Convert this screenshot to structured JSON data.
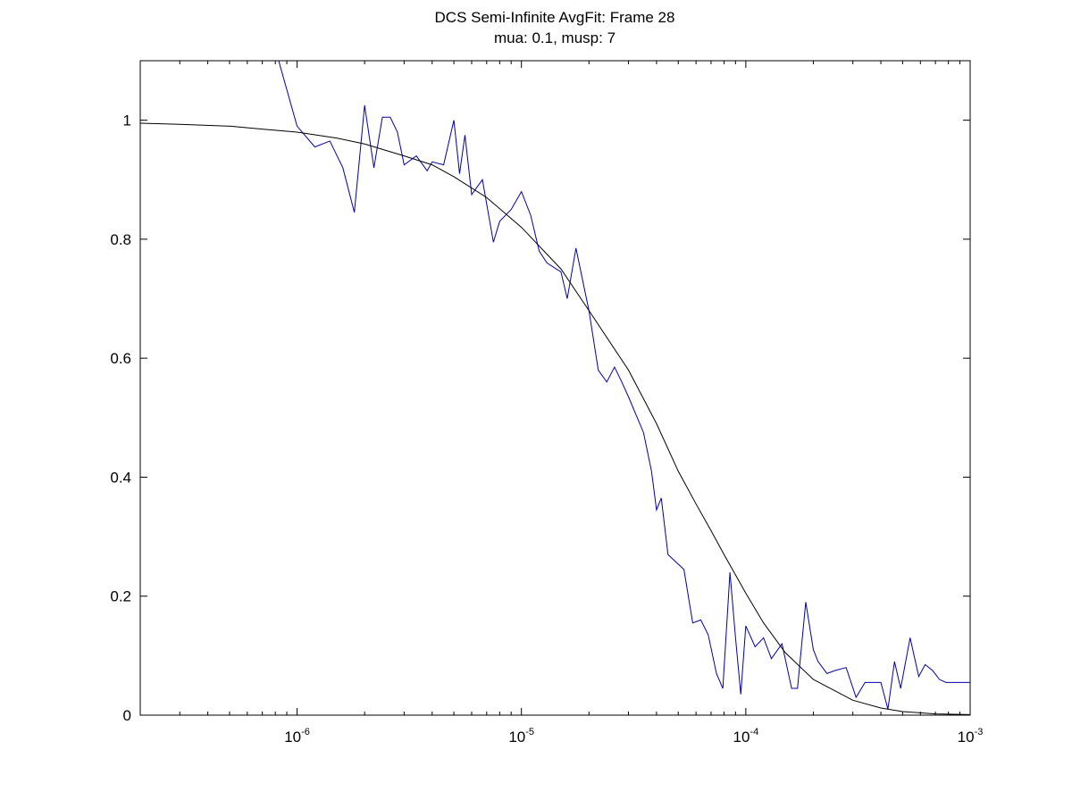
{
  "chart_data": {
    "type": "line",
    "title": "DCS Semi-Infinite AvgFit: Frame 28",
    "subtitle": "mua: 0.1, musp: 7",
    "xlabel": "",
    "ylabel": "",
    "xscale": "log",
    "xlim": [
      2e-07,
      0.001
    ],
    "ylim": [
      0,
      1.1
    ],
    "grid": false,
    "legend": "none",
    "x_ticks": [
      {
        "value": 1e-06,
        "base": "10",
        "exp": "-6"
      },
      {
        "value": 1e-05,
        "base": "10",
        "exp": "-5"
      },
      {
        "value": 0.0001,
        "base": "10",
        "exp": "-4"
      },
      {
        "value": 0.001,
        "base": "10",
        "exp": "-3"
      }
    ],
    "y_ticks": [
      {
        "value": 0,
        "label": "0"
      },
      {
        "value": 0.2,
        "label": "0.2"
      },
      {
        "value": 0.4,
        "label": "0.4"
      },
      {
        "value": 0.6,
        "label": "0.6"
      },
      {
        "value": 0.8,
        "label": "0.8"
      },
      {
        "value": 1,
        "label": "1"
      }
    ],
    "series": [
      {
        "color": "#0000aa",
        "x": [
          8e-07,
          1e-06,
          1.2e-06,
          1.4e-06,
          1.6e-06,
          1.8e-06,
          2e-06,
          2.2e-06,
          2.4e-06,
          2.6e-06,
          2.8e-06,
          3e-06,
          3.4e-06,
          3.8e-06,
          4e-06,
          4.5e-06,
          5e-06,
          5.3e-06,
          5.6e-06,
          6e-06,
          6.7e-06,
          7.5e-06,
          8e-06,
          9e-06,
          1e-05,
          1.1e-05,
          1.2e-05,
          1.3e-05,
          1.5e-05,
          1.6e-05,
          1.75e-05,
          1.9e-05,
          2e-05,
          2.2e-05,
          2.4e-05,
          2.6e-05,
          2.8e-05,
          3e-05,
          3.5e-05,
          3.8e-05,
          4e-05,
          4.2e-05,
          4.5e-05,
          4.8e-05,
          5.3e-05,
          5.8e-05,
          6.3e-05,
          6.8e-05,
          7.4e-05,
          7.9e-05,
          8.5e-05,
          9e-05,
          9.5e-05,
          0.0001,
          0.00011,
          0.00012,
          0.00013,
          0.000145,
          0.00016,
          0.00017,
          0.000185,
          0.0002,
          0.00021,
          0.00023,
          0.00025,
          0.00028,
          0.00031,
          0.00034,
          0.00036,
          0.00038,
          0.0004,
          0.00043,
          0.00046,
          0.00049,
          0.00054,
          0.00059,
          0.00063,
          0.00068,
          0.00073,
          0.00078,
          0.00083,
          0.0009,
          0.001
        ],
        "y": [
          1.12,
          0.99,
          0.955,
          0.965,
          0.92,
          0.845,
          1.025,
          0.92,
          1.005,
          1.005,
          0.98,
          0.925,
          0.94,
          0.915,
          0.93,
          0.925,
          1.0,
          0.91,
          0.975,
          0.875,
          0.9,
          0.795,
          0.83,
          0.85,
          0.88,
          0.84,
          0.78,
          0.76,
          0.745,
          0.7,
          0.785,
          0.72,
          0.68,
          0.58,
          0.56,
          0.585,
          0.56,
          0.535,
          0.475,
          0.41,
          0.345,
          0.365,
          0.27,
          0.26,
          0.245,
          0.155,
          0.16,
          0.135,
          0.07,
          0.045,
          0.24,
          0.13,
          0.035,
          0.15,
          0.115,
          0.13,
          0.095,
          0.12,
          0.045,
          0.045,
          0.19,
          0.11,
          0.09,
          0.07,
          0.075,
          0.08,
          0.03,
          0.055,
          0.055,
          0.055,
          0.055,
          0.01,
          0.09,
          0.045,
          0.13,
          0.065,
          0.085,
          0.075,
          0.06,
          0.055,
          0.055,
          0.055,
          0.055
        ]
      },
      {
        "color": "#000000",
        "x": [
          2e-07,
          3e-07,
          5e-07,
          7e-07,
          1e-06,
          1.5e-06,
          2e-06,
          3e-06,
          4e-06,
          5e-06,
          7e-06,
          1e-05,
          1.5e-05,
          2e-05,
          3e-05,
          4e-05,
          5e-05,
          6e-05,
          7e-05,
          8e-05,
          0.0001,
          0.00012,
          0.00015,
          0.0002,
          0.0003,
          0.0004,
          0.0005,
          0.0007,
          0.001
        ],
        "y": [
          0.995,
          0.993,
          0.99,
          0.985,
          0.98,
          0.97,
          0.96,
          0.94,
          0.925,
          0.905,
          0.87,
          0.82,
          0.75,
          0.68,
          0.58,
          0.49,
          0.41,
          0.355,
          0.31,
          0.27,
          0.205,
          0.155,
          0.105,
          0.06,
          0.025,
          0.012,
          0.006,
          0.002,
          0.001
        ]
      }
    ]
  }
}
